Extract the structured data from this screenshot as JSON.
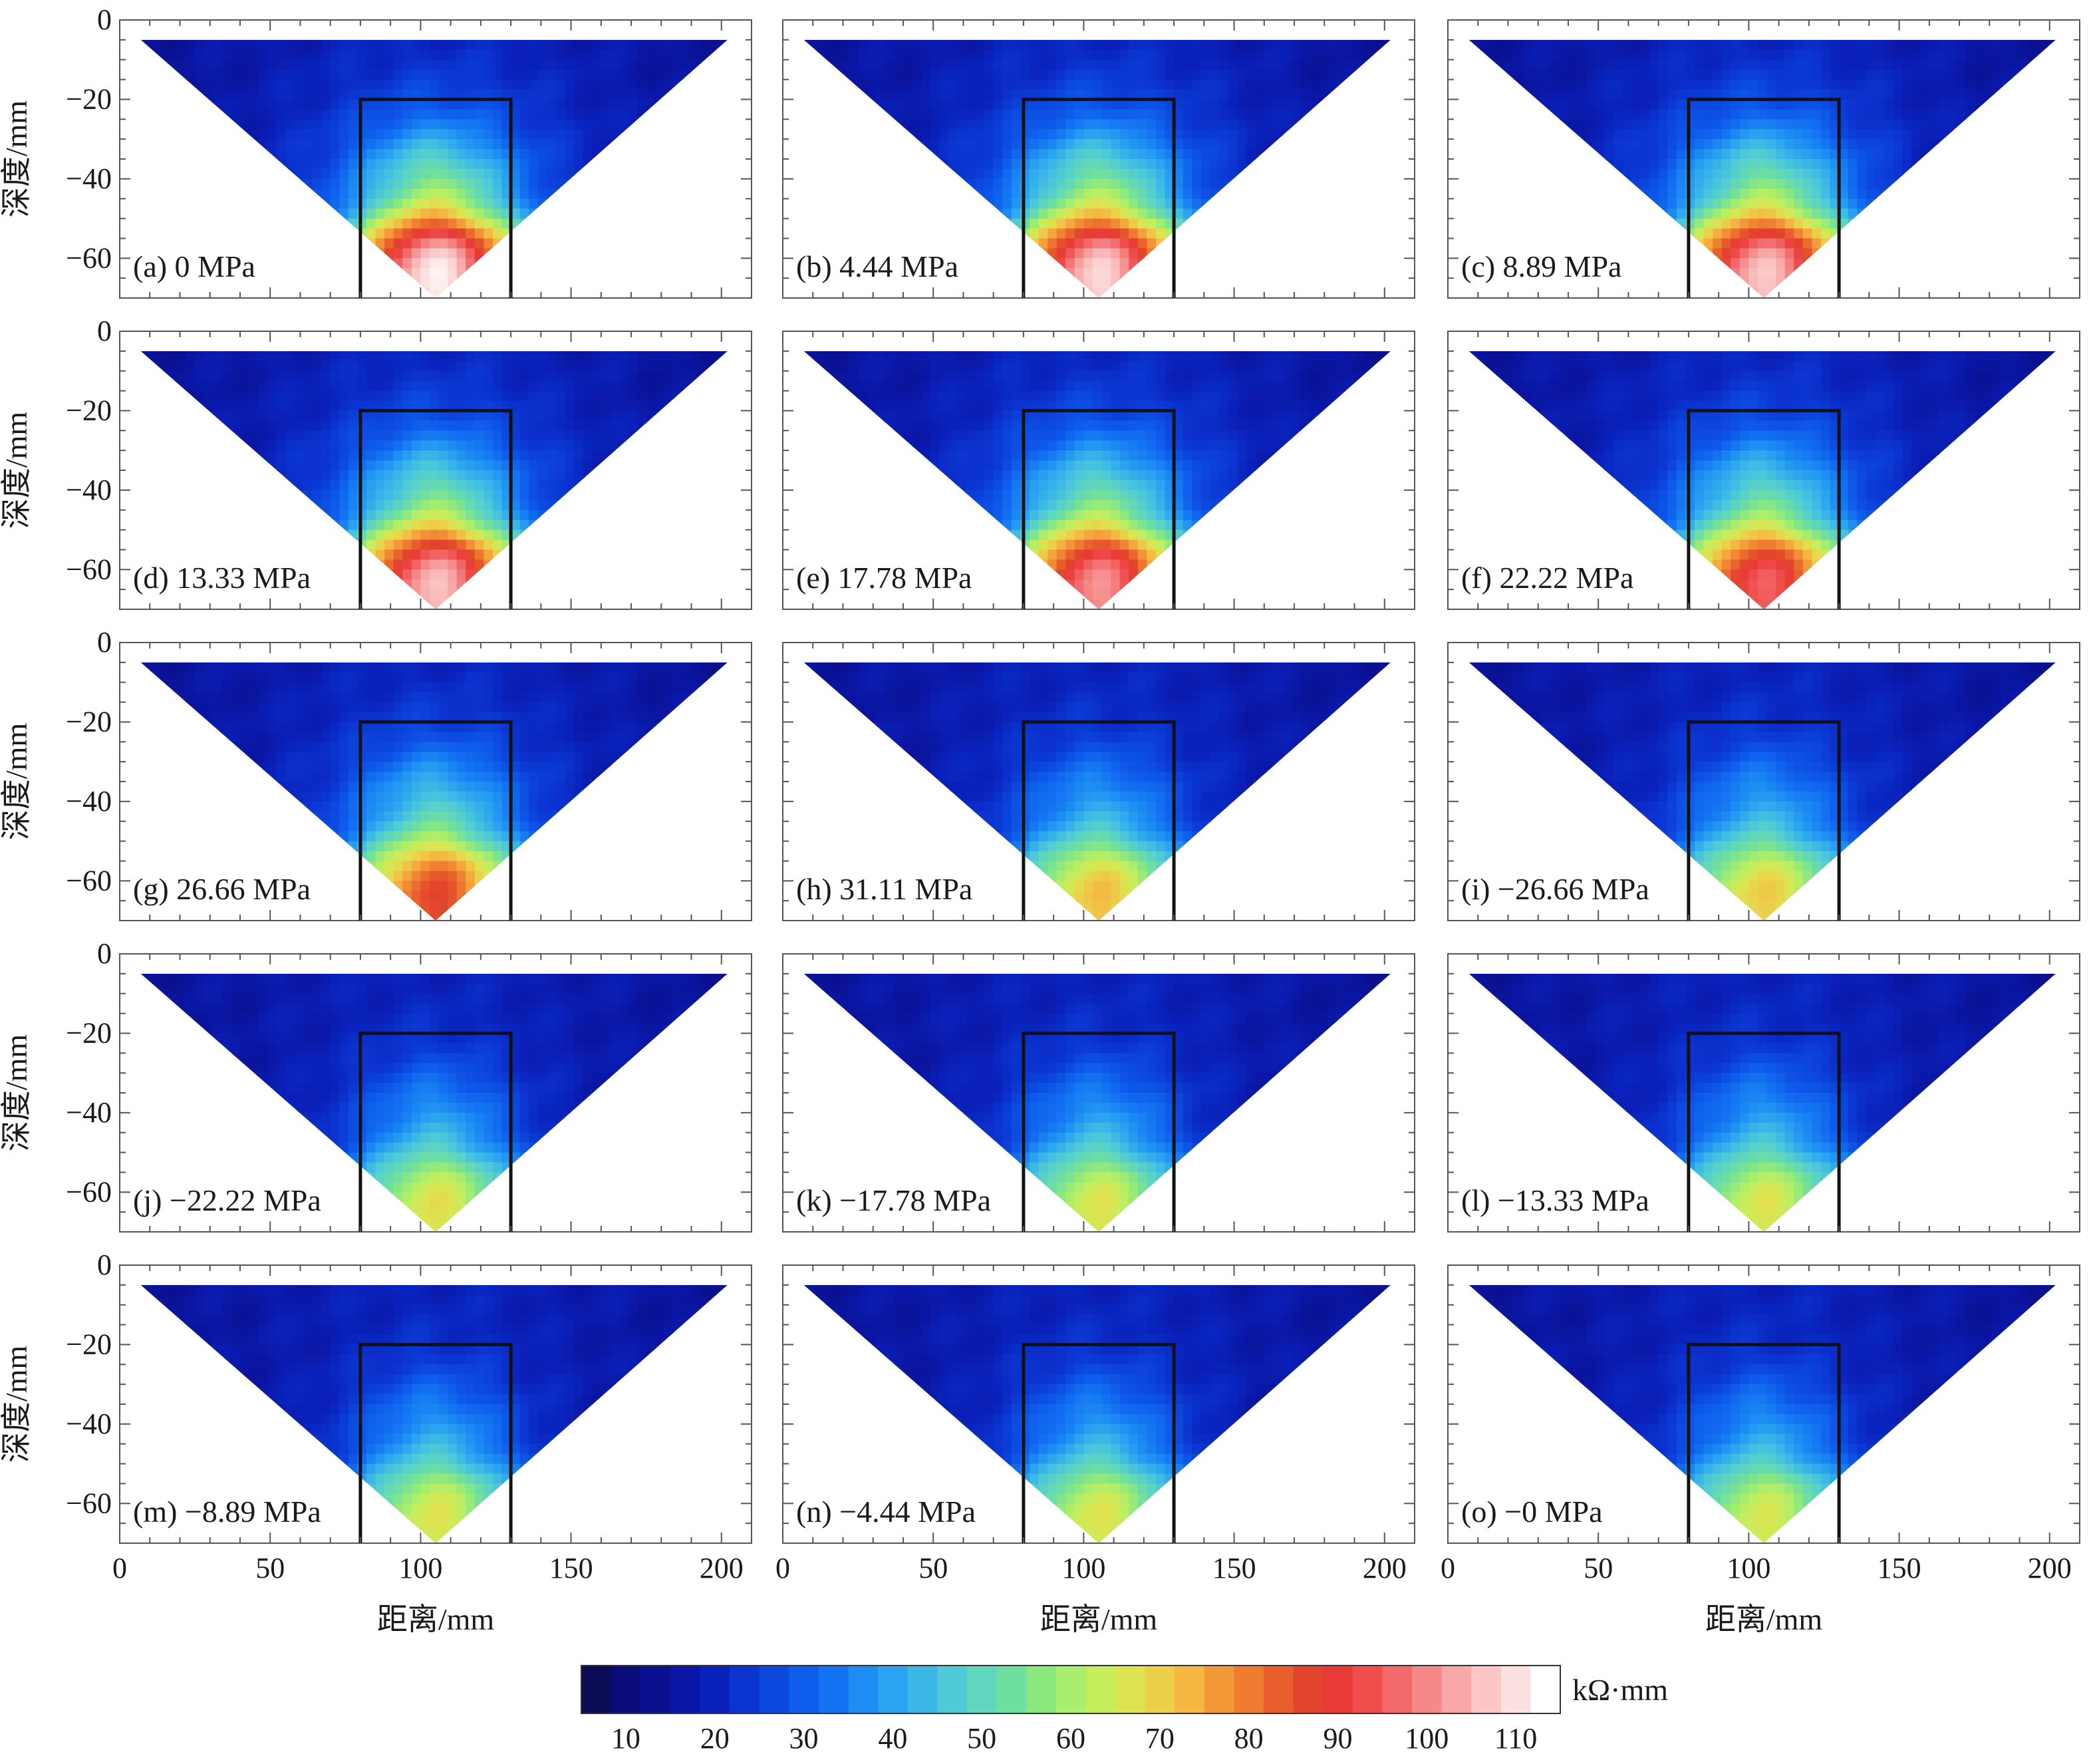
{
  "figure": {
    "xlabel": "距离/mm",
    "ylabel": "深度/mm",
    "x_ticks": [
      0,
      50,
      100,
      150,
      200
    ],
    "y_ticks": [
      0,
      -20,
      -40,
      -60
    ],
    "xlim": [
      0,
      210
    ],
    "ylim": [
      -70,
      0
    ]
  },
  "colorbar": {
    "unit": "kΩ·mm",
    "ticks": [
      10,
      20,
      30,
      40,
      50,
      60,
      70,
      80,
      90,
      100,
      110
    ],
    "range": [
      5,
      115
    ],
    "colors": [
      "#0b0a55",
      "#0a0b7a",
      "#0a108f",
      "#0a17a6",
      "#0a22bb",
      "#0b33cf",
      "#0c47de",
      "#0e5ceb",
      "#1473f2",
      "#1d8cf3",
      "#2aa3f0",
      "#3cb8e6",
      "#4fcad6",
      "#5fd6bd",
      "#6fdf9f",
      "#8be87f",
      "#a9ee6c",
      "#c6ee5c",
      "#dde350",
      "#ecd04a",
      "#f5b642",
      "#f49938",
      "#ef7c30",
      "#e85e2c",
      "#e2452b",
      "#e93a38",
      "#f04d4d",
      "#f26a6a",
      "#f58989",
      "#f8a8a8",
      "#fbc6c6",
      "#fde0e0",
      "#ffffff"
    ]
  },
  "chart_data": {
    "type": "heatmap",
    "xlabel": "距离/mm",
    "ylabel": "深度/mm",
    "colorbar_unit": "kΩ·mm",
    "electrode_box": {
      "x": [
        80,
        130
      ],
      "y_top": -20
    },
    "pseudosection": {
      "x_range": [
        7,
        202
      ],
      "y_top": -5,
      "apex": [
        105,
        -70
      ]
    },
    "panels": [
      {
        "label": "(a) 0 MPa",
        "stress": 0,
        "peak": 105,
        "side": 22,
        "core": 52
      },
      {
        "label": "(b) 4.44 MPa",
        "stress": 4.44,
        "peak": 102,
        "side": 22,
        "core": 52
      },
      {
        "label": "(c) 8.89 MPa",
        "stress": 8.89,
        "peak": 100,
        "side": 22,
        "core": 51
      },
      {
        "label": "(d) 13.33 MPa",
        "stress": 13.33,
        "peak": 100,
        "side": 21,
        "core": 50
      },
      {
        "label": "(e) 17.78 MPa",
        "stress": 17.78,
        "peak": 95,
        "side": 21,
        "core": 49
      },
      {
        "label": "(f) 22.22 MPa",
        "stress": 22.22,
        "peak": 90,
        "side": 20,
        "core": 48
      },
      {
        "label": "(g) 26.66 MPa",
        "stress": 26.66,
        "peak": 82,
        "side": 19,
        "core": 45
      },
      {
        "label": "(h) 31.11 MPa",
        "stress": 31.11,
        "peak": 70,
        "side": 16,
        "core": 40
      },
      {
        "label": "(i) −26.66 MPa",
        "stress": -26.66,
        "peak": 68,
        "side": 16,
        "core": 40
      },
      {
        "label": "(j) −22.22 MPa",
        "stress": -22.22,
        "peak": 66,
        "side": 15,
        "core": 40
      },
      {
        "label": "(k) −17.78 MPa",
        "stress": -17.78,
        "peak": 65,
        "side": 15,
        "core": 40
      },
      {
        "label": "(l) −13.33 MPa",
        "stress": -13.33,
        "peak": 65,
        "side": 15,
        "core": 40
      },
      {
        "label": "(m) −8.89 MPa",
        "stress": -8.89,
        "peak": 65,
        "side": 15,
        "core": 40
      },
      {
        "label": "(n) −4.44 MPa",
        "stress": -4.44,
        "peak": 65,
        "side": 15,
        "core": 40
      },
      {
        "label": "(o) −0 MPa",
        "stress": 0,
        "peak": 64,
        "side": 15,
        "core": 39
      }
    ]
  }
}
